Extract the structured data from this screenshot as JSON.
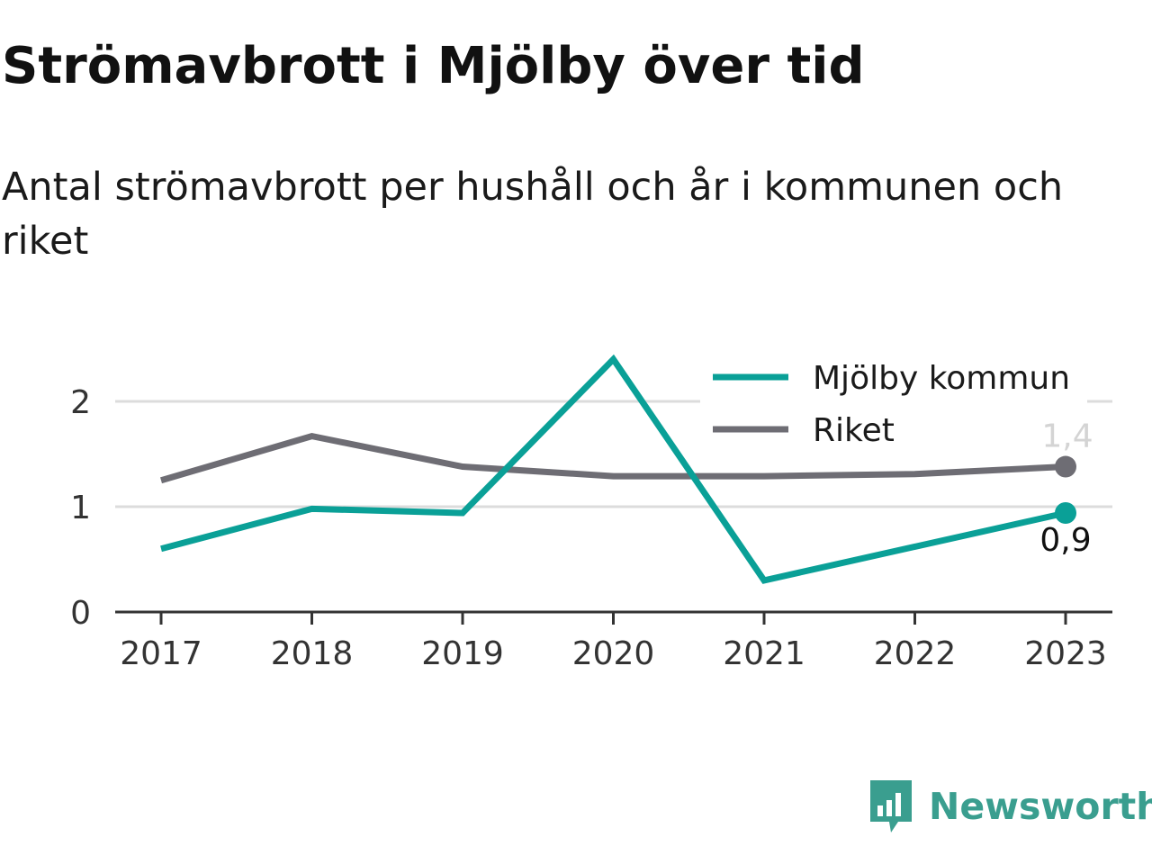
{
  "title": "Strömavbrott i Mjölby över tid",
  "subtitle": "Antal strömavbrott per hushåll och år i kommunen och riket",
  "brand": {
    "name": "Newsworthy",
    "icon": "bar-chart-speech-bubble-icon",
    "color": "#3a9e8f"
  },
  "chart_data": {
    "type": "line",
    "x": [
      "2017",
      "2018",
      "2019",
      "2020",
      "2021",
      "2022",
      "2023"
    ],
    "ylim": [
      0,
      2.4
    ],
    "yticks": [
      "0",
      "1",
      "2"
    ],
    "ytick_values": [
      0,
      1,
      2
    ],
    "grid": true,
    "legend_position": "top-right",
    "series": [
      {
        "name": "Mjölby kommun",
        "color": "#0aa097",
        "values": [
          0.6,
          0.98,
          0.94,
          2.4,
          0.3,
          0.62,
          0.94
        ],
        "end_label": "0,9"
      },
      {
        "name": "Riket",
        "color": "#6e6d74",
        "values": [
          1.25,
          1.67,
          1.38,
          1.29,
          1.29,
          1.31,
          1.38
        ],
        "end_label": "1,4"
      }
    ]
  }
}
